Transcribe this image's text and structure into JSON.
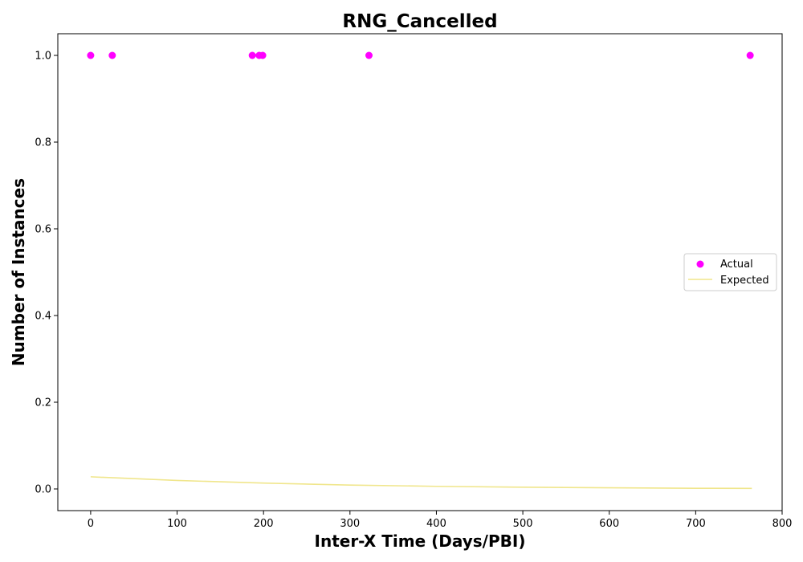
{
  "chart_data": {
    "type": "scatter",
    "title": "RNG_Cancelled",
    "xlabel": "Inter-X Time (Days/PBI)",
    "ylabel": "Number of Instances",
    "xlim": [
      -38,
      800
    ],
    "ylim": [
      -0.05,
      1.05
    ],
    "xticks": [
      0,
      100,
      200,
      300,
      400,
      500,
      600,
      700,
      800
    ],
    "yticks": [
      0.0,
      0.2,
      0.4,
      0.6,
      0.8,
      1.0
    ],
    "grid": false,
    "legend_position": "center-right",
    "series": [
      {
        "name": "Actual",
        "kind": "scatter",
        "color": "#ff00ff",
        "points": [
          {
            "x": 0,
            "y": 1.0
          },
          {
            "x": 25,
            "y": 1.0
          },
          {
            "x": 187,
            "y": 1.0
          },
          {
            "x": 195,
            "y": 1.0
          },
          {
            "x": 199,
            "y": 1.0
          },
          {
            "x": 322,
            "y": 1.0
          },
          {
            "x": 763,
            "y": 1.0
          }
        ]
      },
      {
        "name": "Expected",
        "kind": "line",
        "color": "#f0e68c",
        "points": [
          {
            "x": 0,
            "y": 0.028
          },
          {
            "x": 100,
            "y": 0.0195
          },
          {
            "x": 200,
            "y": 0.0135
          },
          {
            "x": 300,
            "y": 0.009
          },
          {
            "x": 400,
            "y": 0.006
          },
          {
            "x": 500,
            "y": 0.004
          },
          {
            "x": 600,
            "y": 0.0027
          },
          {
            "x": 700,
            "y": 0.0016
          },
          {
            "x": 765,
            "y": 0.0012
          }
        ]
      }
    ]
  }
}
